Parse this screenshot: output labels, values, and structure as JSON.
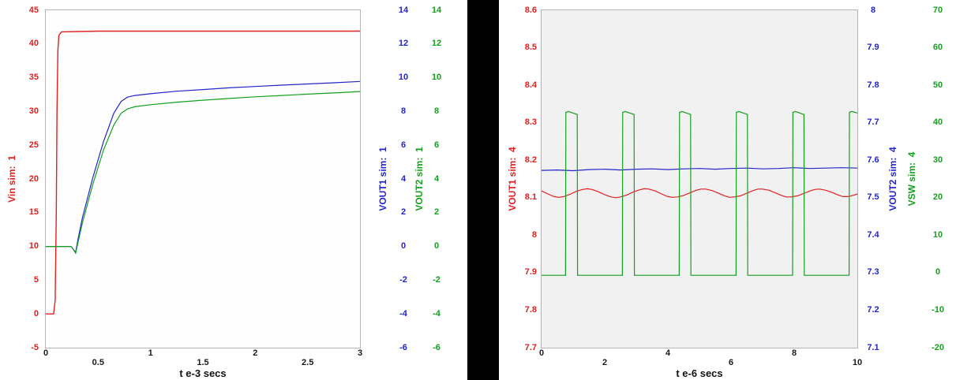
{
  "page": {
    "background": "#ffffff",
    "divider_color": "#000000"
  },
  "chart_data": [
    {
      "type": "line",
      "name": "startup-transient",
      "grid": false,
      "x_axis": {
        "label": "t e-3 secs",
        "min": 0,
        "max": 3,
        "ticks_row0": [
          0,
          1,
          2,
          3
        ],
        "ticks_row1": [
          0.5,
          1.5,
          2.5
        ]
      },
      "y_axes": [
        {
          "id": "vin",
          "title": "Vin sim:  1",
          "color": "#e22020",
          "min": -5,
          "max": 45,
          "ticks": [
            45,
            40,
            35,
            30,
            25,
            20,
            15,
            10,
            5,
            0,
            -5
          ]
        },
        {
          "id": "vout1",
          "title": "VOUT1 sim:  1",
          "color": "#2424cd",
          "min": -6,
          "max": 14,
          "ticks": [
            14,
            12,
            10,
            8,
            6,
            4,
            2,
            0,
            -2,
            -4,
            -6
          ]
        },
        {
          "id": "vout2",
          "title": "VOUT2 sim:  1",
          "color": "#14a01e",
          "min": -6,
          "max": 14,
          "ticks": [
            14,
            12,
            10,
            8,
            6,
            4,
            2,
            0,
            -2,
            -4,
            -6
          ]
        }
      ],
      "series": [
        {
          "id": "vin",
          "axis": "vin",
          "width": 1.4,
          "points": [
            [
              0,
              0
            ],
            [
              0.075,
              0
            ],
            [
              0.09,
              2
            ],
            [
              0.1,
              15
            ],
            [
              0.107,
              30
            ],
            [
              0.115,
              39
            ],
            [
              0.125,
              41.3
            ],
            [
              0.15,
              41.8
            ],
            [
              0.5,
              41.9
            ],
            [
              3,
              41.9
            ]
          ]
        },
        {
          "id": "vout1",
          "axis": "vout1",
          "width": 1.2,
          "points": [
            [
              0,
              0
            ],
            [
              0.24,
              0
            ],
            [
              0.26,
              -0.15
            ],
            [
              0.285,
              -0.35
            ],
            [
              0.31,
              0.5
            ],
            [
              0.35,
              1.7
            ],
            [
              0.45,
              4.1
            ],
            [
              0.55,
              6.2
            ],
            [
              0.65,
              7.9
            ],
            [
              0.72,
              8.6
            ],
            [
              0.78,
              8.85
            ],
            [
              0.85,
              8.95
            ],
            [
              1.0,
              9.05
            ],
            [
              1.25,
              9.2
            ],
            [
              1.5,
              9.3
            ],
            [
              1.75,
              9.4
            ],
            [
              2.0,
              9.48
            ],
            [
              2.25,
              9.56
            ],
            [
              2.5,
              9.63
            ],
            [
              2.75,
              9.7
            ],
            [
              3.0,
              9.78
            ]
          ]
        },
        {
          "id": "vout2",
          "axis": "vout2",
          "width": 1.2,
          "points": [
            [
              0,
              0
            ],
            [
              0.24,
              0
            ],
            [
              0.26,
              -0.15
            ],
            [
              0.285,
              -0.4
            ],
            [
              0.31,
              0.3
            ],
            [
              0.35,
              1.4
            ],
            [
              0.45,
              3.7
            ],
            [
              0.55,
              5.7
            ],
            [
              0.65,
              7.2
            ],
            [
              0.72,
              7.9
            ],
            [
              0.78,
              8.15
            ],
            [
              0.85,
              8.28
            ],
            [
              1.0,
              8.4
            ],
            [
              1.25,
              8.55
            ],
            [
              1.5,
              8.67
            ],
            [
              1.75,
              8.77
            ],
            [
              2.0,
              8.87
            ],
            [
              2.25,
              8.95
            ],
            [
              2.5,
              9.03
            ],
            [
              2.75,
              9.1
            ],
            [
              3.0,
              9.18
            ]
          ]
        }
      ]
    },
    {
      "type": "line",
      "name": "switching-detail",
      "grid": false,
      "x_axis": {
        "label": "t e-6 secs",
        "min": 0,
        "max": 10,
        "ticks_row0": [
          0,
          4,
          8
        ],
        "ticks_row1": [
          2,
          6,
          10
        ]
      },
      "y_axes": [
        {
          "id": "vout1",
          "title": "VOUT1 sim:  4",
          "color": "#e22020",
          "min": 7.7,
          "max": 8.6,
          "ticks": [
            8.6,
            8.5,
            8.4,
            8.3,
            8.2,
            8.1,
            8,
            7.9,
            7.8,
            7.7
          ]
        },
        {
          "id": "vout2",
          "title": "VOUT2 sim:  4",
          "color": "#2424cd",
          "min": 7.1,
          "max": 8.0,
          "ticks": [
            8,
            7.9,
            7.8,
            7.7,
            7.6,
            7.5,
            7.4,
            7.3,
            7.2,
            7.1
          ]
        },
        {
          "id": "vsw",
          "title": "VSW sim:  4",
          "color": "#14a01e",
          "min": -20,
          "max": 70,
          "ticks": [
            70,
            60,
            50,
            40,
            30,
            20,
            10,
            0,
            -10,
            -20
          ]
        }
      ],
      "series": [
        {
          "id": "vout1",
          "axis": "vout1",
          "width": 1.2,
          "points": [
            [
              0,
              8.118
            ],
            [
              0.2,
              8.11
            ],
            [
              0.4,
              8.103
            ],
            [
              0.55,
              8.101
            ],
            [
              0.7,
              8.103
            ],
            [
              0.9,
              8.109
            ],
            [
              1.1,
              8.117
            ],
            [
              1.3,
              8.122
            ],
            [
              1.45,
              8.124
            ],
            [
              1.6,
              8.122
            ],
            [
              1.8,
              8.116
            ],
            [
              2.0,
              8.108
            ],
            [
              2.2,
              8.102
            ],
            [
              2.35,
              8.1
            ],
            [
              2.5,
              8.102
            ],
            [
              2.7,
              8.107
            ],
            [
              2.9,
              8.115
            ],
            [
              3.1,
              8.121
            ],
            [
              3.25,
              8.124
            ],
            [
              3.4,
              8.123
            ],
            [
              3.6,
              8.118
            ],
            [
              3.8,
              8.11
            ],
            [
              4.0,
              8.103
            ],
            [
              4.15,
              8.101
            ],
            [
              4.3,
              8.102
            ],
            [
              4.5,
              8.106
            ],
            [
              4.7,
              8.113
            ],
            [
              4.9,
              8.12
            ],
            [
              5.05,
              8.123
            ],
            [
              5.2,
              8.123
            ],
            [
              5.4,
              8.119
            ],
            [
              5.6,
              8.112
            ],
            [
              5.8,
              8.105
            ],
            [
              5.95,
              8.101
            ],
            [
              6.1,
              8.102
            ],
            [
              6.3,
              8.105
            ],
            [
              6.5,
              8.112
            ],
            [
              6.7,
              8.119
            ],
            [
              6.85,
              8.123
            ],
            [
              7.0,
              8.123
            ],
            [
              7.2,
              8.12
            ],
            [
              7.4,
              8.113
            ],
            [
              7.6,
              8.106
            ],
            [
              7.75,
              8.102
            ],
            [
              7.9,
              8.102
            ],
            [
              8.1,
              8.105
            ],
            [
              8.3,
              8.111
            ],
            [
              8.5,
              8.118
            ],
            [
              8.65,
              8.122
            ],
            [
              8.8,
              8.123
            ],
            [
              9.0,
              8.12
            ],
            [
              9.2,
              8.114
            ],
            [
              9.4,
              8.107
            ],
            [
              9.55,
              8.103
            ],
            [
              9.7,
              8.103
            ],
            [
              9.9,
              8.107
            ],
            [
              10,
              8.11
            ]
          ]
        },
        {
          "id": "vout2",
          "axis": "vout2",
          "width": 1.2,
          "points": [
            [
              0,
              7.573
            ],
            [
              0.5,
              7.574
            ],
            [
              1,
              7.572
            ],
            [
              1.5,
              7.575
            ],
            [
              2,
              7.576
            ],
            [
              2.5,
              7.574
            ],
            [
              3,
              7.576
            ],
            [
              3.5,
              7.577
            ],
            [
              4,
              7.575
            ],
            [
              4.5,
              7.577
            ],
            [
              5,
              7.578
            ],
            [
              5.5,
              7.576
            ],
            [
              6,
              7.578
            ],
            [
              6.5,
              7.579
            ],
            [
              7,
              7.577
            ],
            [
              7.5,
              7.578
            ],
            [
              8,
              7.58
            ],
            [
              8.5,
              7.578
            ],
            [
              9,
              7.579
            ],
            [
              9.5,
              7.58
            ],
            [
              10,
              7.579
            ]
          ]
        },
        {
          "id": "vsw",
          "axis": "vsw",
          "width": 1.2,
          "points": [
            [
              0,
              -0.7
            ],
            [
              0.76,
              -0.7
            ],
            [
              0.77,
              42.8
            ],
            [
              0.85,
              43
            ],
            [
              1.13,
              42.2
            ],
            [
              1.14,
              -0.7
            ],
            [
              2.56,
              -0.7
            ],
            [
              2.57,
              42.8
            ],
            [
              2.65,
              43
            ],
            [
              2.93,
              42.2
            ],
            [
              2.94,
              -0.7
            ],
            [
              4.36,
              -0.7
            ],
            [
              4.37,
              42.8
            ],
            [
              4.45,
              43
            ],
            [
              4.72,
              42.2
            ],
            [
              4.73,
              -0.7
            ],
            [
              6.16,
              -0.7
            ],
            [
              6.17,
              42.8
            ],
            [
              6.25,
              43
            ],
            [
              6.52,
              42.2
            ],
            [
              6.53,
              -0.7
            ],
            [
              7.95,
              -0.7
            ],
            [
              7.96,
              42.8
            ],
            [
              8.04,
              43
            ],
            [
              8.31,
              42.2
            ],
            [
              8.32,
              -0.7
            ],
            [
              9.74,
              -0.7
            ],
            [
              9.75,
              42.8
            ],
            [
              9.83,
              43
            ],
            [
              10,
              42.6
            ]
          ]
        }
      ]
    }
  ]
}
